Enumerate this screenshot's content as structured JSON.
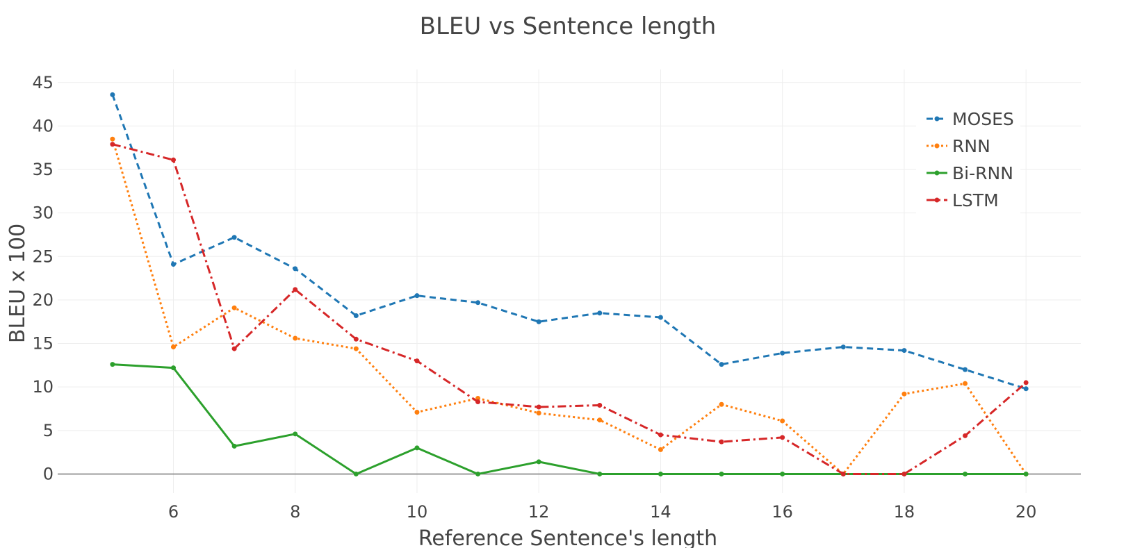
{
  "chart_data": {
    "type": "line",
    "title": "BLEU vs Sentence length",
    "xlabel": "Reference Sentence's length",
    "ylabel": "BLEU x 100",
    "xlim": [
      4.1,
      20.9
    ],
    "ylim": [
      -2.2,
      46.5
    ],
    "x_ticks": [
      6,
      8,
      10,
      12,
      14,
      16,
      18,
      20
    ],
    "y_ticks": [
      0,
      5,
      10,
      15,
      20,
      25,
      30,
      35,
      40,
      45
    ],
    "grid": true,
    "legend_position": "top-right",
    "x": [
      5,
      6,
      7,
      8,
      9,
      10,
      11,
      12,
      13,
      14,
      15,
      16,
      17,
      18,
      19,
      20
    ],
    "series": [
      {
        "name": "MOSES",
        "color": "#1f77b4",
        "dash": "dashed",
        "values": [
          43.6,
          24.1,
          27.2,
          23.6,
          18.2,
          20.5,
          19.7,
          17.5,
          18.5,
          18.0,
          12.6,
          13.9,
          14.6,
          14.2,
          12.0,
          9.8
        ]
      },
      {
        "name": "RNN",
        "color": "#ff7f0e",
        "dash": "dotted",
        "values": [
          38.5,
          14.6,
          19.1,
          15.6,
          14.4,
          7.1,
          8.7,
          7.0,
          6.2,
          2.8,
          8.0,
          6.1,
          0.0,
          9.2,
          10.4,
          0.0
        ]
      },
      {
        "name": "Bi-RNN",
        "color": "#2ca02c",
        "dash": "solid",
        "values": [
          12.6,
          12.2,
          3.2,
          4.6,
          0.0,
          3.0,
          0.0,
          1.4,
          0.0,
          0.0,
          0.0,
          0.0,
          0.0,
          0.0,
          0.0,
          0.0
        ]
      },
      {
        "name": "LSTM",
        "color": "#d62728",
        "dash": "dashdot",
        "values": [
          37.9,
          36.1,
          14.4,
          21.2,
          15.5,
          13.0,
          8.3,
          7.7,
          7.9,
          4.5,
          3.7,
          4.2,
          0.0,
          0.0,
          4.4,
          10.5
        ]
      }
    ]
  }
}
